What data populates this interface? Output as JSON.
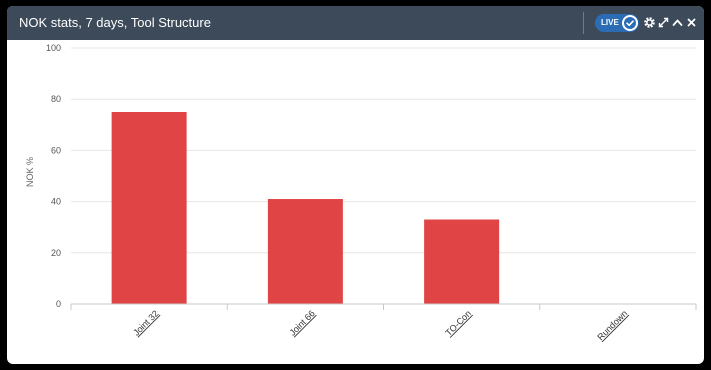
{
  "widget": {
    "title": "NOK stats, 7 days, Tool Structure",
    "live_label": "LIVE",
    "icons": [
      "check-icon",
      "gear-icon",
      "expand-icon",
      "collapse-icon",
      "close-icon"
    ]
  },
  "colors": {
    "header_bg": "#3c4a5a",
    "bar": "#e04444",
    "live_toggle": "#2b6cb5",
    "grid": "#e6e6e6"
  },
  "chart_data": {
    "type": "bar",
    "categories": [
      "Joint 32",
      "Joint 66",
      "TO-Con",
      "Rundown"
    ],
    "values": [
      75,
      41,
      33,
      0
    ],
    "title": "NOK stats, 7 days, Tool Structure",
    "xlabel": "",
    "ylabel": "NOK %",
    "ylim": [
      0,
      100
    ],
    "yticks": [
      "0",
      "20",
      "40",
      "60",
      "80",
      "100"
    ],
    "grid": true,
    "legend": "none"
  }
}
